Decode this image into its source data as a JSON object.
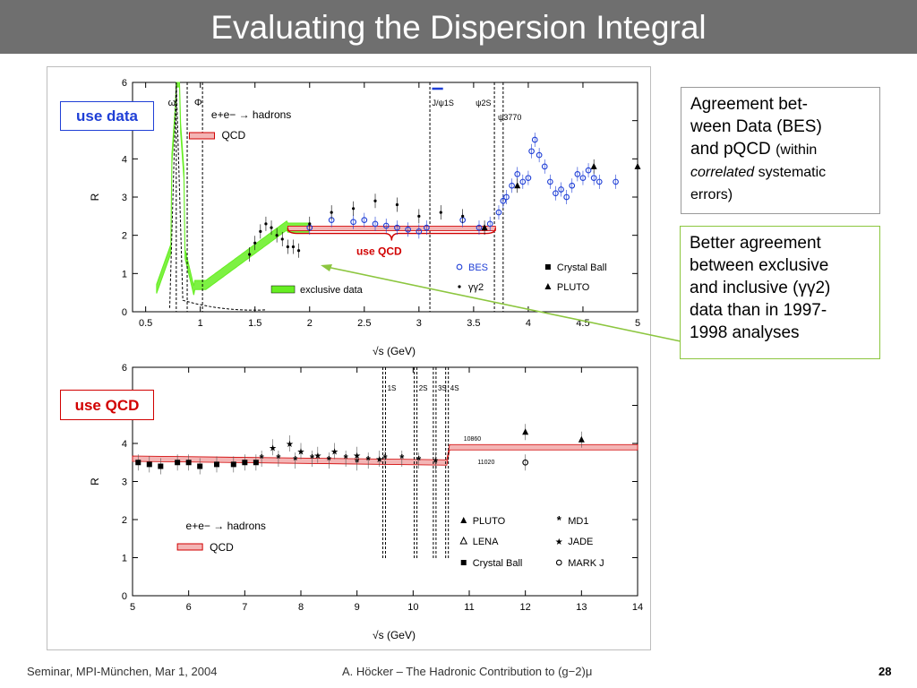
{
  "slide": {
    "title": "Evaluating the Dispersion Integral",
    "callout_agreement": {
      "line1": "Agreement bet-",
      "line2": "ween Data (BES)",
      "line3": "and pQCD",
      "line3_small": "(within",
      "line4_italic": "correlated",
      "line4_rest": "systematic",
      "line5": "errors)"
    },
    "callout_better": {
      "line1": "Better agreement",
      "line2": "between exclusive",
      "line3": "and inclusive (γγ2)",
      "line4": "data than in 1997-",
      "line5": "1998 analyses"
    },
    "tag_use_data": "use data",
    "tag_use_qcd": "use QCD",
    "footer_left": "Seminar, MPI-München, Mar 1, 2004",
    "footer_mid": "A. Höcker – The Hadronic Contribution to (g−2)μ",
    "page_number": "28"
  },
  "colors": {
    "title_bg": "#6f6f6f",
    "green": "#66ee22",
    "blue": "#1f3fd6",
    "red": "#d10000",
    "arrow": "#8cc63f"
  },
  "chart_data": [
    {
      "type": "scatter",
      "xlabel": "√s   (GeV)",
      "ylabel": "R",
      "xlim": [
        0.38,
        5.0
      ],
      "ylim": [
        0,
        6
      ],
      "xticks": [
        "0.5",
        "1",
        "1.5",
        "2",
        "2.5",
        "3",
        "3.5",
        "4",
        "4.5",
        "5"
      ],
      "yticks": [
        "0",
        "1",
        "2",
        "3",
        "4",
        "5",
        "6"
      ],
      "resonance_labels": [
        "ω",
        "Φ",
        "J/ψ1S",
        "ψ2S",
        "ψ3770"
      ],
      "process_label": "e+e− → hadrons",
      "annotation_use_qcd": "use QCD",
      "legend": {
        "qcd": "QCD",
        "exclusive": "exclusive data",
        "bes": "BES",
        "gg2": "γγ2",
        "crystal_ball": "Crystal Ball",
        "pluto": "PLUTO"
      },
      "qcd_band": {
        "x": [
          1.8,
          3.7
        ],
        "y": 2.18
      },
      "series": [
        {
          "name": "BES",
          "x": [
            2.0,
            2.2,
            2.4,
            2.5,
            2.6,
            2.7,
            2.8,
            2.9,
            3.0,
            3.07,
            3.4,
            3.55,
            3.65,
            3.73,
            3.77,
            3.8,
            3.85,
            3.9,
            3.95,
            4.0,
            4.03,
            4.06,
            4.1,
            4.15,
            4.2,
            4.25,
            4.3,
            4.35,
            4.4,
            4.45,
            4.5,
            4.55,
            4.6,
            4.65,
            4.8
          ],
          "y": [
            2.2,
            2.4,
            2.35,
            2.4,
            2.3,
            2.25,
            2.2,
            2.15,
            2.1,
            2.2,
            2.4,
            2.2,
            2.3,
            2.6,
            2.9,
            3.0,
            3.3,
            3.6,
            3.4,
            3.5,
            4.2,
            4.5,
            4.1,
            3.8,
            3.4,
            3.1,
            3.2,
            3.0,
            3.3,
            3.6,
            3.5,
            3.7,
            3.5,
            3.4,
            3.4
          ]
        },
        {
          "name": "γγ2",
          "x": [
            1.45,
            1.5,
            1.55,
            1.6,
            1.65,
            1.7,
            1.75,
            1.8,
            1.85,
            1.9,
            2.0,
            2.2,
            2.4,
            2.6,
            2.8,
            3.0,
            3.2,
            3.4
          ],
          "y": [
            1.5,
            1.8,
            2.1,
            2.3,
            2.2,
            2.0,
            1.9,
            1.7,
            1.7,
            1.6,
            2.3,
            2.6,
            2.7,
            2.9,
            2.8,
            2.5,
            2.6,
            2.5
          ]
        },
        {
          "name": "PLUTO",
          "x": [
            3.6,
            3.9,
            4.6,
            5.0
          ],
          "y": [
            2.2,
            3.3,
            3.8,
            3.8
          ]
        }
      ]
    },
    {
      "type": "scatter",
      "xlabel": "√s   (GeV)",
      "ylabel": "R",
      "xlim": [
        5,
        14
      ],
      "ylim": [
        0,
        6
      ],
      "xticks": [
        "5",
        "6",
        "7",
        "8",
        "9",
        "10",
        "11",
        "12",
        "13",
        "14"
      ],
      "yticks": [
        "0",
        "1",
        "2",
        "3",
        "4",
        "5",
        "6"
      ],
      "resonance_labels": [
        "1S",
        "2S",
        "3S",
        "4S"
      ],
      "extra_labels": [
        "10860",
        "11020"
      ],
      "process_label": "e+e− → hadrons",
      "legend": {
        "qcd": "QCD",
        "pluto": "PLUTO",
        "lena": "LENA",
        "crystal_ball": "Crystal Ball",
        "md1": "MD1",
        "jade": "JADE",
        "markj": "MARK J"
      },
      "qcd_band": {
        "x": [
          5,
          10.6,
          10.65,
          14
        ],
        "y": [
          3.6,
          3.5,
          3.9,
          3.9
        ]
      },
      "series": [
        {
          "name": "Crystal Ball",
          "x": [
            5.1,
            5.3,
            5.5,
            5.8,
            6.0,
            6.2,
            6.5,
            6.8,
            7.0,
            7.2
          ],
          "y": [
            3.5,
            3.45,
            3.4,
            3.5,
            3.5,
            3.4,
            3.45,
            3.45,
            3.5,
            3.5
          ]
        },
        {
          "name": "MD1",
          "x": [
            7.3,
            7.6,
            7.9,
            8.2,
            8.5,
            8.8,
            9.0,
            9.2,
            9.5,
            9.8,
            10.1,
            10.4
          ],
          "y": [
            3.6,
            3.6,
            3.55,
            3.6,
            3.55,
            3.6,
            3.5,
            3.55,
            3.6,
            3.6,
            3.55,
            3.5
          ]
        },
        {
          "name": "JADE",
          "x": [
            7.5,
            7.8,
            8.0,
            8.3,
            8.6,
            9.0,
            9.4
          ],
          "y": [
            3.9,
            4.0,
            3.8,
            3.7,
            3.8,
            3.7,
            3.6
          ]
        },
        {
          "name": "PLUTO",
          "x": [
            12.0,
            13.0
          ],
          "y": [
            4.3,
            4.1
          ]
        },
        {
          "name": "MARK J",
          "x": [
            12.0
          ],
          "y": [
            3.5
          ]
        }
      ]
    }
  ]
}
